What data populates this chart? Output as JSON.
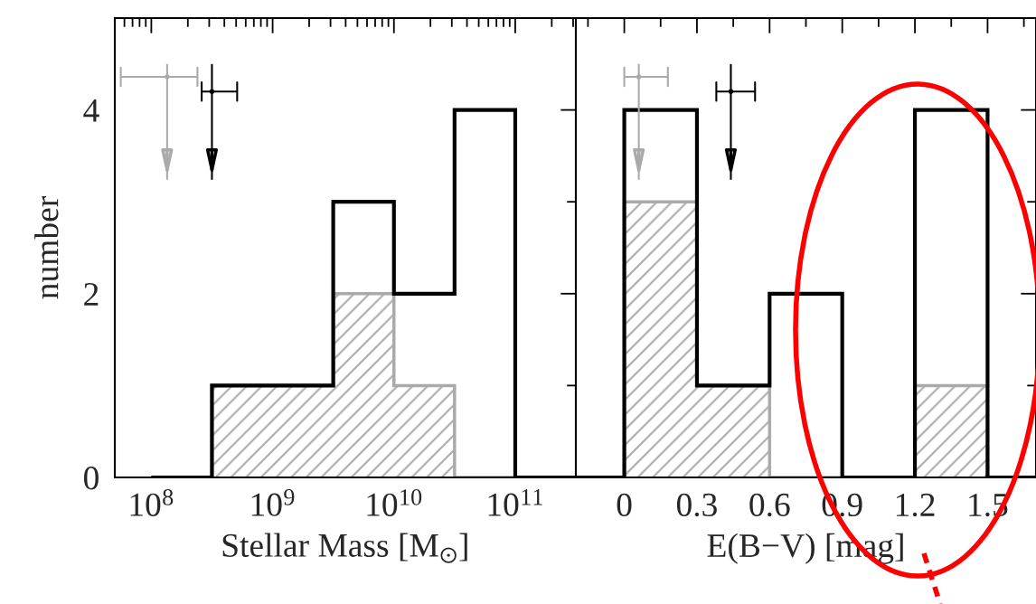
{
  "chart_data": [
    {
      "type": "histogram",
      "xlabel": "Stellar Mass [M$_{⊙}$]",
      "ylabel": "number",
      "log": "x",
      "bins": [
        100000000.0,
        316000000.0,
        1000000000.0,
        3160000000.0,
        10000000000.0,
        31600000000.0,
        100000000000.0,
        316000000000.0
      ],
      "series": [
        {
          "color": "#000000",
          "values": [
            0,
            1,
            1,
            3,
            2,
            4,
            0
          ]
        },
        {
          "color": "#aaaaaa",
          "values": [
            0,
            1,
            1,
            2,
            1,
            0,
            0
          ]
        },
        {
          "type": "scatter",
          "color": "#aaaaaa",
          "x": [
            135000000.0
          ],
          "values": [
            4.36
          ],
          "xerrors": [
            [
              56000000.0,
              240000000.0
            ]
          ],
          "errors": [
            [
              3.24,
              4.5
            ]
          ]
        },
        {
          "type": "scatter",
          "color": "#000000",
          "x": [
            316000000.0
          ],
          "values": [
            4.2
          ],
          "xerrors": [
            [
              260000000.0,
              510000000.0
            ]
          ],
          "errors": [
            [
              3.24,
              4.5
            ]
          ]
        }
      ],
      "xlim": [
        50000000.0,
        316000000000.0
      ],
      "xticks": [
        {
          "value": 60000000.0,
          "label": null
        },
        {
          "value": 70000000.0,
          "label": null
        },
        {
          "value": 80000000.0,
          "label": null
        },
        {
          "value": 90000000.0,
          "label": null
        },
        {
          "value": 100000000.0,
          "label": "10$^{8}$"
        },
        {
          "value": 200000000.0,
          "label": null
        },
        {
          "value": 300000000.0,
          "label": null
        },
        {
          "value": 400000000.0,
          "label": null
        },
        {
          "value": 500000000.0,
          "label": null
        },
        {
          "value": 600000000.0,
          "label": null
        },
        {
          "value": 700000000.0,
          "label": null
        },
        {
          "value": 800000000.0,
          "label": null
        },
        {
          "value": 900000000.0,
          "label": null
        },
        {
          "value": 1000000000.0,
          "label": "10$^{9}$"
        },
        {
          "value": 2000000000.0,
          "label": null
        },
        {
          "value": 3000000000.0,
          "label": null
        },
        {
          "value": 4000000000.0,
          "label": null
        },
        {
          "value": 5000000000.0,
          "label": null
        },
        {
          "value": 6000000000.0,
          "label": null
        },
        {
          "value": 7000000000.0,
          "label": null
        },
        {
          "value": 8000000000.0,
          "label": null
        },
        {
          "value": 9000000000.0,
          "label": null
        },
        {
          "value": 10000000000.0,
          "label": "10$^{10}$"
        },
        {
          "value": 20000000000.0,
          "label": null
        },
        {
          "value": 30000000000.0,
          "label": null
        },
        {
          "value": 40000000000.0,
          "label": null
        },
        {
          "value": 50000000000.0,
          "label": null
        },
        {
          "value": 60000000000.0,
          "label": null
        },
        {
          "value": 70000000000.0,
          "label": null
        },
        {
          "value": 80000000000.0,
          "label": null
        },
        {
          "value": 90000000000.0,
          "label": null
        },
        {
          "value": 100000000000.0,
          "label": "10$^{11}$"
        },
        {
          "value": 200000000000.0,
          "label": null
        },
        {
          "value": 300000000000.0,
          "label": null
        }
      ],
      "ylim": [
        0,
        5
      ],
      "yticks": [
        0,
        {
          "value": 1,
          "label": null
        },
        2,
        {
          "value": 3,
          "label": null
        },
        4,
        {
          "value": 5,
          "label": null
        }
      ],
      "grid": false,
      "legend": false
    },
    {
      "type": "histogram",
      "xlabel": "E(B−V) [mag]",
      "bins": [
        -0.2,
        0,
        0.3,
        0.6,
        0.9,
        1.2,
        1.5,
        1.7
      ],
      "series": [
        {
          "color": "#000000",
          "values": [
            0,
            4,
            1,
            2,
            0,
            4,
            0
          ]
        },
        {
          "color": "#aaaaaa",
          "values": [
            0,
            3,
            1,
            0,
            0,
            1,
            0
          ]
        },
        {
          "type": "scatter",
          "color": "#aaaaaa",
          "x": [
            0.06
          ],
          "values": [
            4.36
          ],
          "xerrors": [
            [
              0,
              0.18
            ]
          ],
          "errors": [
            [
              3.24,
              4.5
            ]
          ]
        },
        {
          "type": "scatter",
          "color": "#000000",
          "x": [
            0.44
          ],
          "values": [
            4.2
          ],
          "xerrors": [
            [
              0.38,
              0.54
            ]
          ],
          "errors": [
            [
              3.24,
              4.5
            ]
          ]
        }
      ],
      "xlim": [
        -0.2,
        1.7
      ],
      "xticks": [
        {
          "value": -0.15,
          "label": null
        },
        0,
        {
          "value": 0.15,
          "label": null
        },
        0.3,
        {
          "value": 0.45,
          "label": null
        },
        0.6,
        {
          "value": 0.75,
          "label": null
        },
        0.9,
        {
          "value": 1.05,
          "label": null
        },
        1.2,
        {
          "value": 1.35,
          "label": null
        },
        1.5,
        {
          "value": 1.65,
          "label": null
        }
      ],
      "ylim": [
        0,
        5
      ],
      "yticks": [
        0,
        {
          "value": 1,
          "label": null
        },
        2,
        {
          "value": 3,
          "label": null
        },
        4,
        {
          "value": 5,
          "label": null
        }
      ],
      "tick_labels": "x",
      "grid": false,
      "legend": false
    }
  ]
}
